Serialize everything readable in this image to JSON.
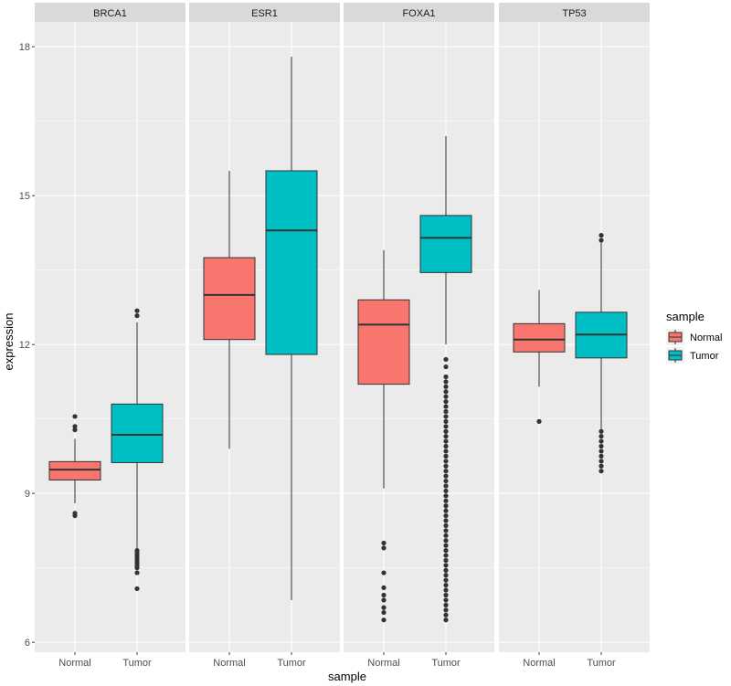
{
  "chart_data": {
    "type": "boxplot",
    "facet_variable": "gene",
    "facets": [
      "BRCA1",
      "ESR1",
      "FOXA1",
      "TP53"
    ],
    "categories": [
      "Normal",
      "Tumor"
    ],
    "xlabel": "sample",
    "ylabel": "expression",
    "ylim": [
      5.8,
      18.5
    ],
    "yticks": [
      6,
      9,
      12,
      15,
      18
    ],
    "grid": true,
    "legend": {
      "title": "sample",
      "position": "right",
      "entries": [
        {
          "label": "Normal",
          "color": "#F8766D"
        },
        {
          "label": "Tumor",
          "color": "#00BFC4"
        }
      ]
    },
    "boxes": [
      {
        "facet": "BRCA1",
        "sample": "Normal",
        "whisker_low": 8.8,
        "q1": 9.27,
        "median": 9.48,
        "q3": 9.64,
        "whisker_high": 10.1,
        "outliers": [
          8.55,
          8.6,
          10.28,
          10.35,
          10.55
        ]
      },
      {
        "facet": "BRCA1",
        "sample": "Tumor",
        "whisker_low": 7.9,
        "q1": 9.62,
        "median": 10.18,
        "q3": 10.8,
        "whisker_high": 12.45,
        "outliers": [
          7.08,
          7.4,
          7.5,
          7.55,
          7.6,
          7.65,
          7.7,
          7.75,
          7.8,
          7.85,
          12.58,
          12.68
        ]
      },
      {
        "facet": "ESR1",
        "sample": "Normal",
        "whisker_low": 9.9,
        "q1": 12.1,
        "median": 13.0,
        "q3": 13.75,
        "whisker_high": 15.5,
        "outliers": []
      },
      {
        "facet": "ESR1",
        "sample": "Tumor",
        "whisker_low": 6.85,
        "q1": 11.8,
        "median": 14.3,
        "q3": 15.5,
        "whisker_high": 17.8,
        "outliers": []
      },
      {
        "facet": "FOXA1",
        "sample": "Normal",
        "whisker_low": 9.1,
        "q1": 11.2,
        "median": 12.4,
        "q3": 12.9,
        "whisker_high": 13.9,
        "outliers": [
          6.45,
          6.6,
          6.7,
          6.85,
          6.95,
          7.1,
          7.4,
          7.9,
          8.0
        ]
      },
      {
        "facet": "FOXA1",
        "sample": "Tumor",
        "whisker_low": 12.0,
        "q1": 13.45,
        "median": 14.15,
        "q3": 14.6,
        "whisker_high": 16.2,
        "outliers": [
          6.45,
          6.55,
          6.65,
          6.75,
          6.85,
          6.95,
          7.05,
          7.15,
          7.25,
          7.35,
          7.45,
          7.55,
          7.65,
          7.75,
          7.85,
          7.95,
          8.05,
          8.15,
          8.25,
          8.35,
          8.45,
          8.55,
          8.65,
          8.75,
          8.85,
          8.95,
          9.05,
          9.15,
          9.25,
          9.35,
          9.45,
          9.55,
          9.65,
          9.75,
          9.85,
          9.95,
          10.05,
          10.15,
          10.25,
          10.35,
          10.45,
          10.55,
          10.65,
          10.75,
          10.85,
          10.95,
          11.05,
          11.15,
          11.25,
          11.35,
          11.55,
          11.7
        ]
      },
      {
        "facet": "TP53",
        "sample": "Normal",
        "whisker_low": 11.15,
        "q1": 11.85,
        "median": 12.1,
        "q3": 12.42,
        "whisker_high": 13.1,
        "outliers": [
          10.45
        ]
      },
      {
        "facet": "TP53",
        "sample": "Tumor",
        "whisker_low": 10.3,
        "q1": 11.73,
        "median": 12.2,
        "q3": 12.65,
        "whisker_high": 14.05,
        "outliers": [
          9.45,
          9.55,
          9.65,
          9.75,
          9.85,
          9.95,
          10.05,
          10.15,
          10.25,
          14.1,
          14.2
        ]
      }
    ]
  }
}
